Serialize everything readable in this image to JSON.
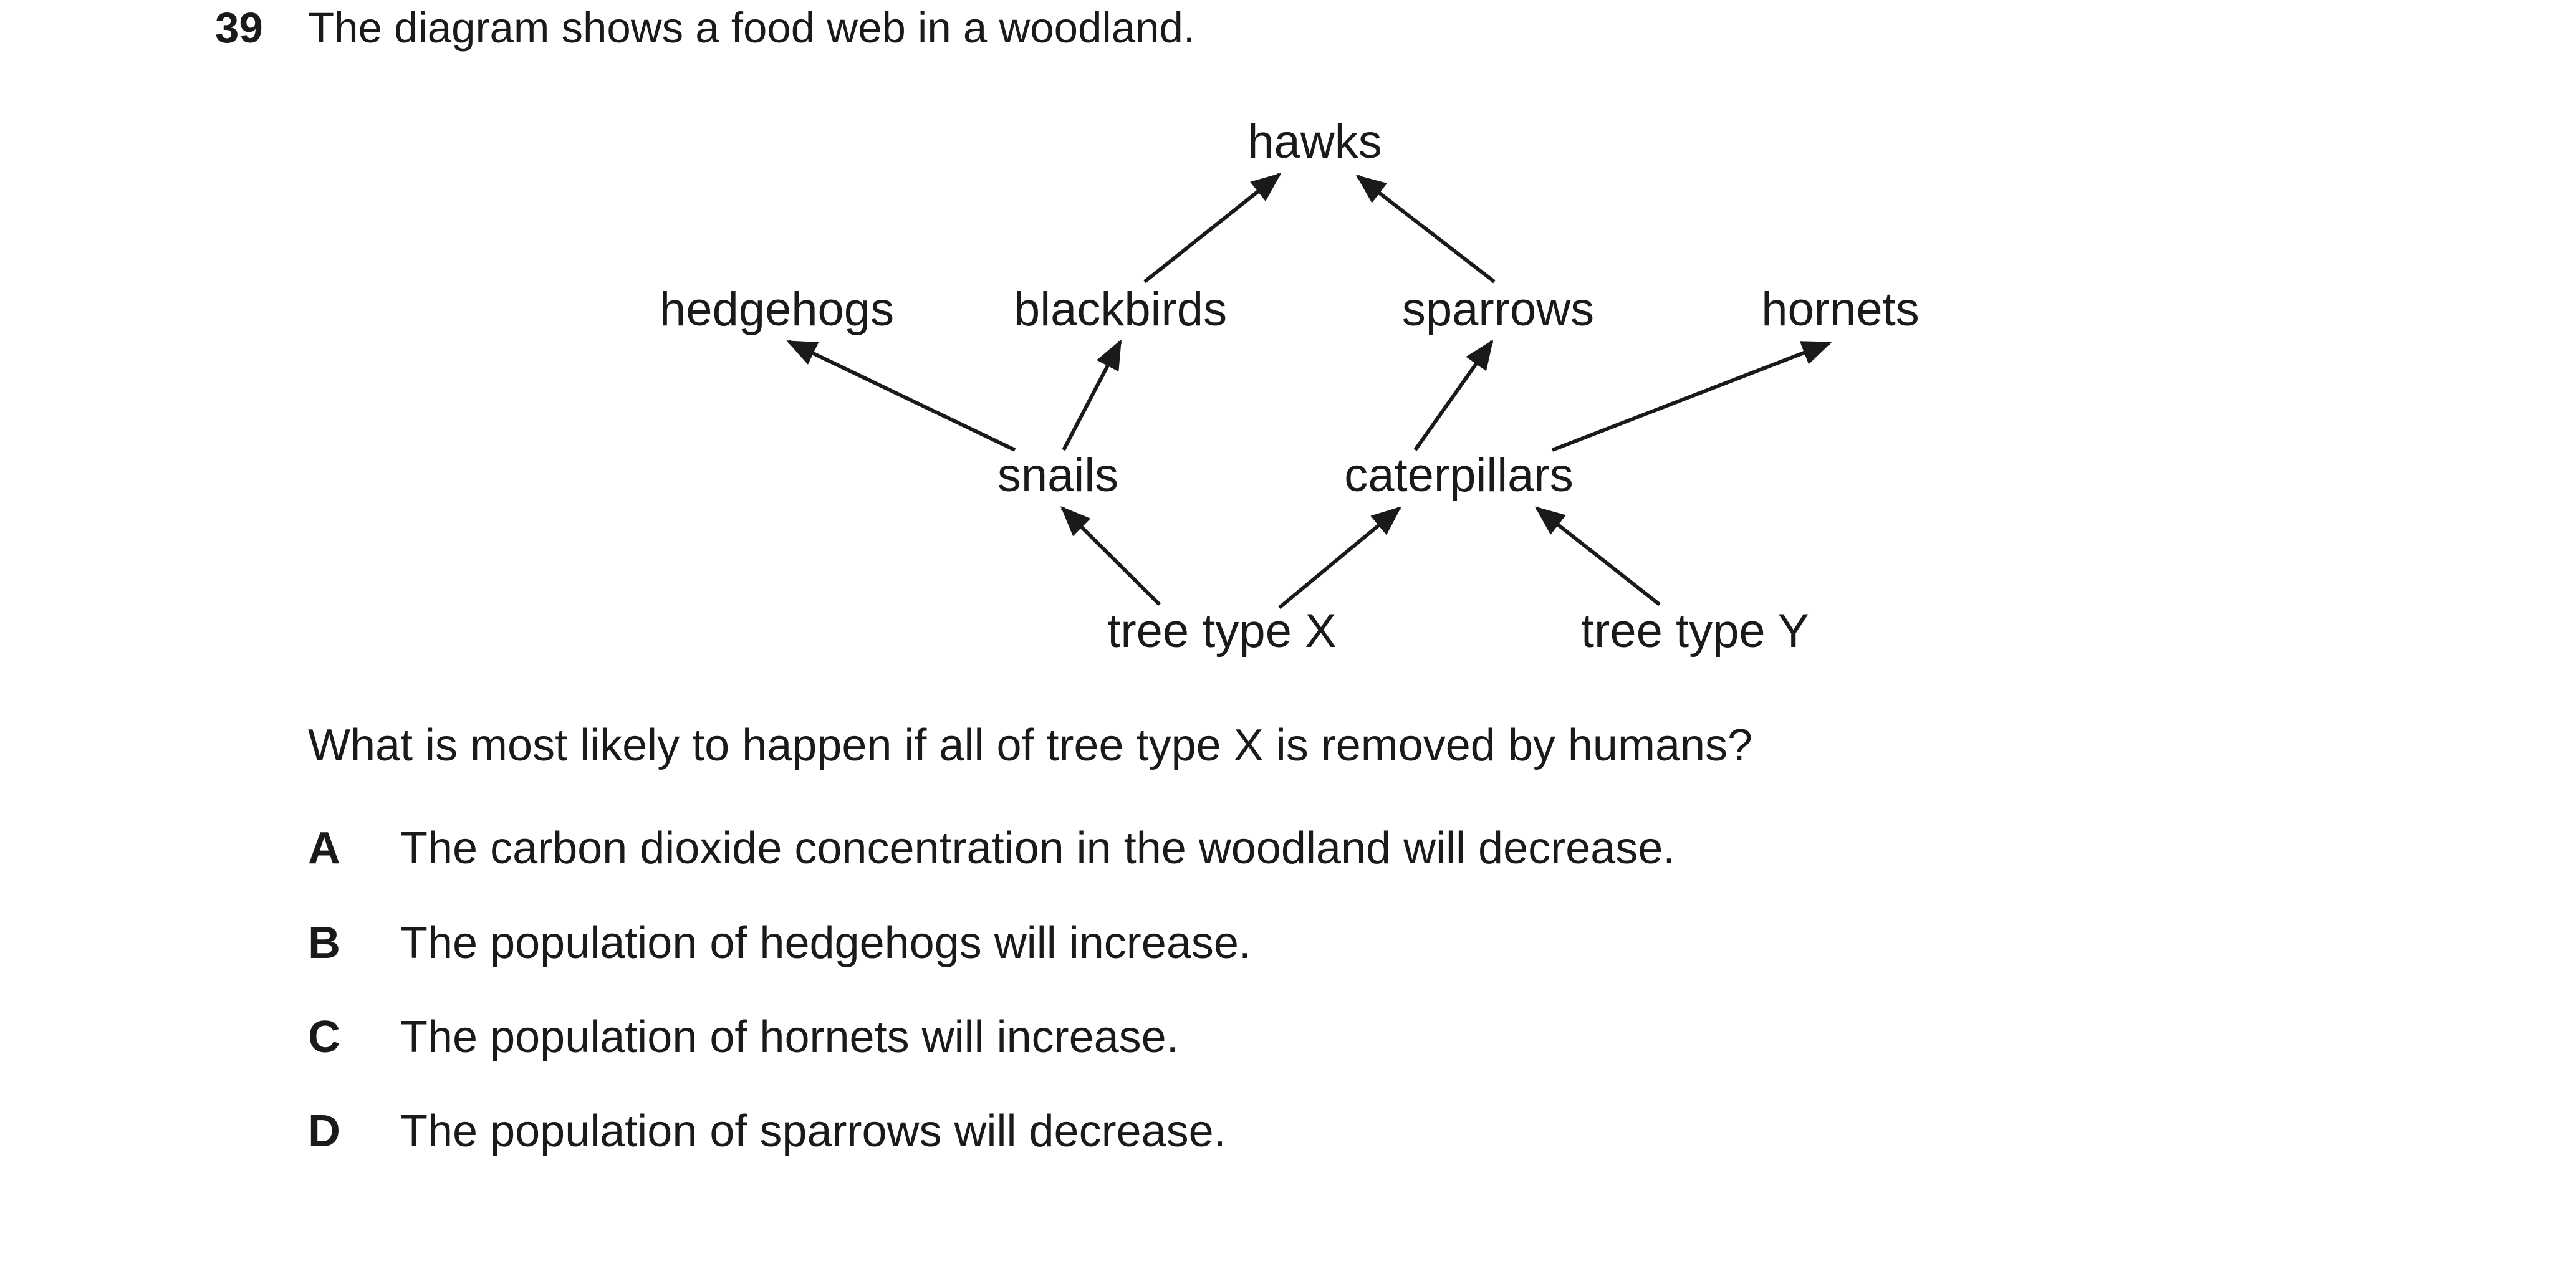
{
  "question": {
    "number": "39",
    "intro": "The diagram shows a food web in a woodland.",
    "prompt": "What is most likely to happen if all of tree type X is removed by humans?",
    "options": [
      {
        "letter": "A",
        "text": "The carbon dioxide concentration in the woodland will decrease."
      },
      {
        "letter": "B",
        "text": "The population of hedgehogs will increase."
      },
      {
        "letter": "C",
        "text": "The population of hornets will increase."
      },
      {
        "letter": "D",
        "text": "The population of sparrows will decrease."
      }
    ]
  },
  "food_web": {
    "organisms": {
      "hawks": "hawks",
      "hedgehogs": "hedgehogs",
      "blackbirds": "blackbirds",
      "sparrows": "sparrows",
      "hornets": "hornets",
      "snails": "snails",
      "caterpillars": "caterpillars",
      "tree_x": "tree type X",
      "tree_y": "tree type Y"
    },
    "links": [
      {
        "from": "blackbirds",
        "to": "hawks"
      },
      {
        "from": "sparrows",
        "to": "hawks"
      },
      {
        "from": "snails",
        "to": "hedgehogs"
      },
      {
        "from": "snails",
        "to": "blackbirds"
      },
      {
        "from": "caterpillars",
        "to": "sparrows"
      },
      {
        "from": "caterpillars",
        "to": "hornets"
      },
      {
        "from": "tree type X",
        "to": "snails"
      },
      {
        "from": "tree type X",
        "to": "caterpillars"
      },
      {
        "from": "tree type Y",
        "to": "caterpillars"
      }
    ]
  }
}
